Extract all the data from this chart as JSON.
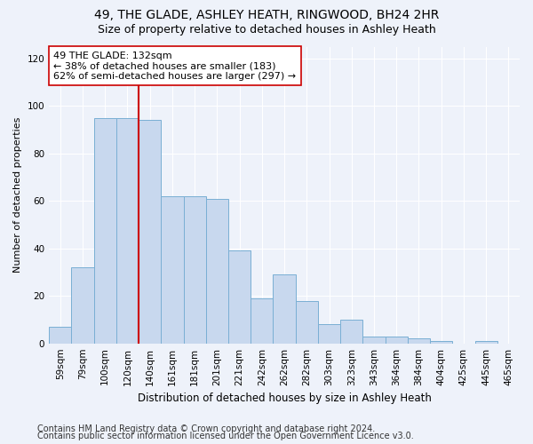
{
  "title1": "49, THE GLADE, ASHLEY HEATH, RINGWOOD, BH24 2HR",
  "title2": "Size of property relative to detached houses in Ashley Heath",
  "xlabel": "Distribution of detached houses by size in Ashley Heath",
  "ylabel": "Number of detached properties",
  "bar_labels": [
    "59sqm",
    "79sqm",
    "100sqm",
    "120sqm",
    "140sqm",
    "161sqm",
    "181sqm",
    "201sqm",
    "221sqm",
    "242sqm",
    "262sqm",
    "282sqm",
    "303sqm",
    "323sqm",
    "343sqm",
    "364sqm",
    "384sqm",
    "404sqm",
    "425sqm",
    "445sqm",
    "465sqm"
  ],
  "bar_values": [
    7,
    32,
    95,
    95,
    94,
    62,
    62,
    61,
    39,
    19,
    29,
    18,
    8,
    10,
    3,
    3,
    2,
    1,
    0,
    1,
    0
  ],
  "bar_color": "#c8d8ee",
  "bar_edge_color": "#7aafd4",
  "vline_x_index": 3.5,
  "vline_color": "#cc0000",
  "annotation_text": "49 THE GLADE: 132sqm\n← 38% of detached houses are smaller (183)\n62% of semi-detached houses are larger (297) →",
  "annotation_box_color": "#ffffff",
  "annotation_box_edge_color": "#cc0000",
  "ylim": [
    0,
    125
  ],
  "yticks": [
    0,
    20,
    40,
    60,
    80,
    100,
    120
  ],
  "footer1": "Contains HM Land Registry data © Crown copyright and database right 2024.",
  "footer2": "Contains public sector information licensed under the Open Government Licence v3.0.",
  "background_color": "#eef2fa",
  "grid_color": "#ffffff",
  "title1_fontsize": 10,
  "title2_fontsize": 9,
  "xlabel_fontsize": 8.5,
  "ylabel_fontsize": 8,
  "tick_fontsize": 7.5,
  "annotation_fontsize": 8,
  "footer_fontsize": 7
}
